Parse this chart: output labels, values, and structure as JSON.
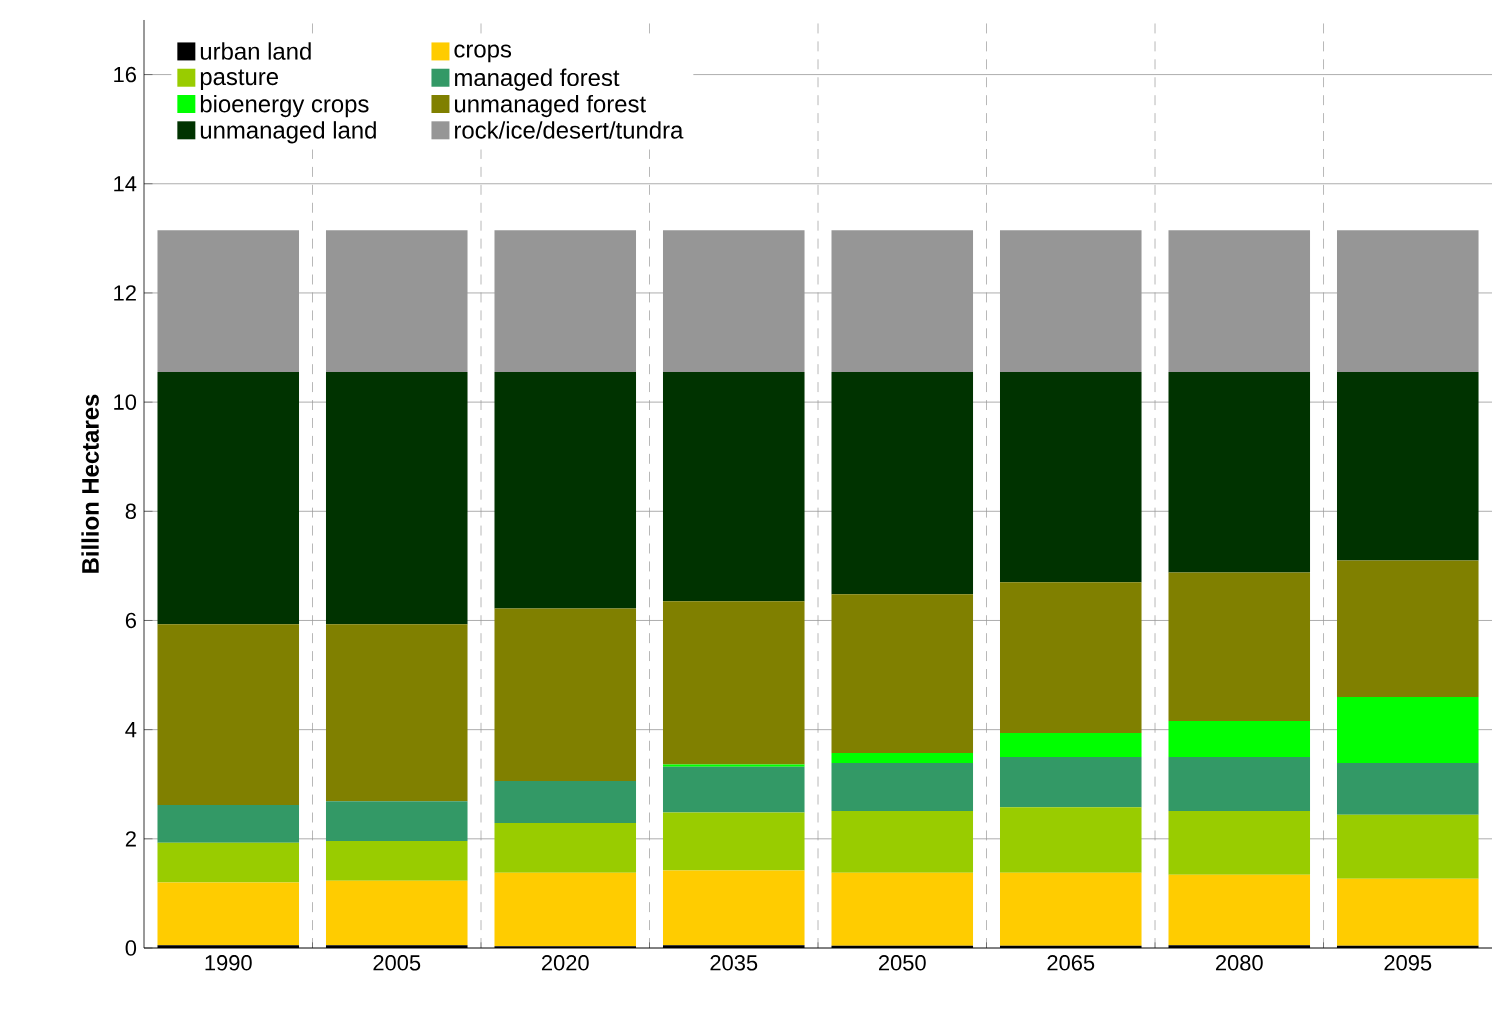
{
  "chart_data": {
    "type": "bar",
    "stacked": true,
    "ylabel": "**Billion Hectares**",
    "categories": [
      "1990",
      "2005",
      "2020",
      "2035",
      "2050",
      "2065",
      "2080",
      "2095"
    ],
    "series": [
      {
        "name": "urban land",
        "color": "#000000",
        "values": [
          0.05,
          0.05,
          0.03,
          0.05,
          0.04,
          0.04,
          0.05,
          0.04
        ]
      },
      {
        "name": "crops",
        "color": "#ffcc00",
        "values": [
          1.15,
          1.18,
          1.35,
          1.37,
          1.34,
          1.34,
          1.29,
          1.23
        ]
      },
      {
        "name": "pasture",
        "color": "#99cc00",
        "values": [
          0.73,
          0.73,
          0.91,
          1.06,
          1.13,
          1.2,
          1.17,
          1.17
        ]
      },
      {
        "name": "managed forest",
        "color": "#339966",
        "values": [
          0.69,
          0.73,
          0.77,
          0.84,
          0.88,
          0.92,
          0.99,
          0.95
        ]
      },
      {
        "name": "bioenergy crops",
        "color": "#00ff00",
        "values": [
          0,
          0,
          0,
          0.04,
          0.18,
          0.44,
          0.66,
          1.21
        ]
      },
      {
        "name": "unmanaged forest",
        "color": "#808000",
        "values": [
          3.31,
          3.24,
          3.16,
          2.99,
          2.91,
          2.76,
          2.72,
          2.5
        ]
      },
      {
        "name": "unmanaged land",
        "color": "#003300",
        "values": [
          4.62,
          4.62,
          4.33,
          4.2,
          4.07,
          3.85,
          3.67,
          3.45
        ]
      },
      {
        "name": "rock/ice/desert/tundra",
        "color": "#969696",
        "values": [
          2.6,
          2.6,
          2.6,
          2.6,
          2.6,
          2.6,
          2.6,
          2.6
        ]
      }
    ],
    "ylim": [
      0,
      17
    ],
    "yticks": [
      0,
      2,
      4,
      6,
      8,
      10,
      12,
      14,
      16
    ],
    "grid": true,
    "legend": "top left"
  }
}
